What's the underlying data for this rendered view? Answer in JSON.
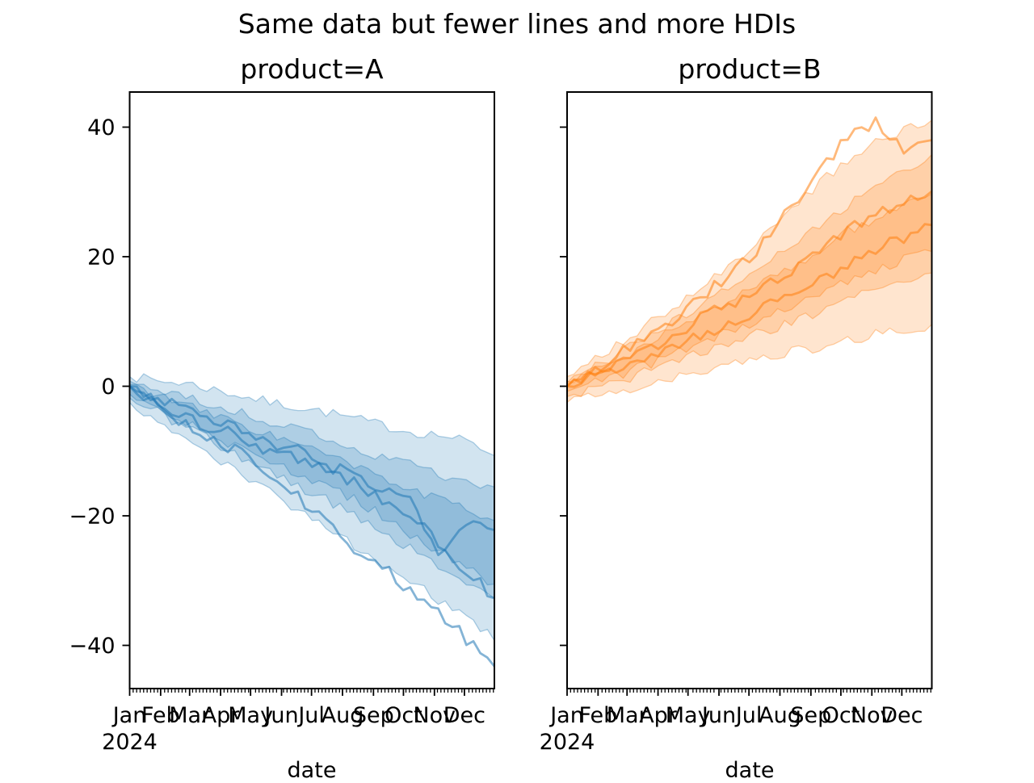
{
  "figure": {
    "suptitle": "Same data but fewer lines and more HDIs",
    "background": "#ffffff",
    "text_color": "#000000"
  },
  "chart_data": [
    {
      "type": "line",
      "title": "product=A",
      "xlabel": "date",
      "year_label": "2024",
      "x_tick_labels": [
        "Jan",
        "Feb",
        "Mar",
        "Apr",
        "May",
        "Jun",
        "Jul",
        "Aug",
        "Sep",
        "Oct",
        "Nov",
        "Dec"
      ],
      "month_start_days": [
        0,
        31,
        60,
        91,
        121,
        152,
        182,
        213,
        244,
        274,
        305,
        335
      ],
      "x_range_days": 365,
      "yticks": [
        {
          "v": 40,
          "label": "40"
        },
        {
          "v": 20,
          "label": "20"
        },
        {
          "v": 0,
          "label": "0"
        },
        {
          "v": -20,
          "label": "−20"
        },
        {
          "v": -40,
          "label": "−40"
        }
      ],
      "show_ytick_labels": true,
      "ylim": [
        -46.9,
        45.4
      ],
      "grid": false,
      "legend": "none",
      "color": "#1f77b4",
      "anchor_weeks": [
        0,
        4,
        8,
        12,
        16,
        20,
        24,
        28,
        32,
        36,
        40,
        44,
        48,
        52
      ],
      "hdi_bands": [
        {
          "name": "hdi-wide",
          "top": [
            1.5,
            0.8,
            0.5,
            -0.5,
            -1.5,
            -2.5,
            -3.2,
            -4.0,
            -5.0,
            -6.0,
            -7.0,
            -7.5,
            -8.5,
            -10.5
          ],
          "bottom": [
            -2.5,
            -5.5,
            -8.0,
            -11.0,
            -13.5,
            -16.5,
            -19.0,
            -21.5,
            -24.5,
            -27.5,
            -30.0,
            -33.0,
            -36.0,
            -39.0
          ]
        },
        {
          "name": "hdi-mid",
          "top": [
            0.8,
            -0.5,
            -1.8,
            -3.0,
            -4.2,
            -5.5,
            -6.8,
            -8.0,
            -9.5,
            -11.0,
            -12.0,
            -13.5,
            -14.5,
            -15.5
          ],
          "bottom": [
            -1.8,
            -4.0,
            -6.5,
            -8.5,
            -11.0,
            -13.0,
            -15.5,
            -17.5,
            -20.0,
            -22.5,
            -25.0,
            -28.0,
            -30.5,
            -33.0
          ]
        },
        {
          "name": "hdi-narrow",
          "top": [
            0.3,
            -1.3,
            -3.0,
            -4.5,
            -6.0,
            -7.5,
            -9.0,
            -10.5,
            -12.5,
            -14.0,
            -16.0,
            -17.5,
            -19.0,
            -20.5
          ],
          "bottom": [
            -1.2,
            -3.5,
            -5.5,
            -8.0,
            -9.5,
            -11.5,
            -13.5,
            -15.5,
            -17.5,
            -20.0,
            -23.0,
            -25.5,
            -28.0,
            -30.5
          ]
        }
      ],
      "lines": [
        [
          0,
          -2.0,
          -3.5,
          -5.0,
          -7.0,
          -8.5,
          -10.0,
          -12.0,
          -14.0,
          -16.0,
          -18.0,
          -26.0,
          -21.5,
          -22.0
        ],
        [
          0,
          -2.5,
          -5.0,
          -6.5,
          -8.0,
          -10.0,
          -11.5,
          -13.0,
          -15.0,
          -17.5,
          -20.0,
          -24.0,
          -28.5,
          -32.5
        ],
        [
          0,
          -3.0,
          -6.0,
          -8.5,
          -10.0,
          -13.5,
          -17.0,
          -21.0,
          -25.0,
          -28.0,
          -31.5,
          -35.0,
          -39.0,
          -43.0
        ]
      ]
    },
    {
      "type": "line",
      "title": "product=B",
      "xlabel": "date",
      "year_label": "2024",
      "x_tick_labels": [
        "Jan",
        "Feb",
        "Mar",
        "Apr",
        "May",
        "Jun",
        "Jul",
        "Aug",
        "Sep",
        "Oct",
        "Nov",
        "Dec"
      ],
      "month_start_days": [
        0,
        31,
        60,
        91,
        121,
        152,
        182,
        213,
        244,
        274,
        305,
        335
      ],
      "x_range_days": 365,
      "yticks": [
        {
          "v": 40,
          "label": "40"
        },
        {
          "v": 20,
          "label": "20"
        },
        {
          "v": 0,
          "label": "0"
        },
        {
          "v": -20,
          "label": "−20"
        },
        {
          "v": -40,
          "label": "−40"
        }
      ],
      "show_ytick_labels": false,
      "ylim": [
        -46.9,
        45.4
      ],
      "grid": false,
      "legend": "none",
      "color": "#ff7f0e",
      "anchor_weeks": [
        0,
        4,
        8,
        12,
        16,
        20,
        24,
        28,
        32,
        36,
        40,
        44,
        48,
        52
      ],
      "hdi_bands": [
        {
          "name": "hdi-wide",
          "top": [
            1.5,
            4.0,
            7.0,
            10.0,
            13.0,
            16.0,
            19.5,
            23.0,
            27.0,
            31.5,
            35.0,
            37.5,
            39.5,
            41.0
          ],
          "bottom": [
            -2.5,
            -1.5,
            -0.5,
            0.5,
            1.5,
            2.5,
            3.5,
            4.5,
            5.5,
            6.0,
            7.0,
            8.0,
            8.5,
            9.5
          ]
        },
        {
          "name": "hdi-mid",
          "top": [
            0.8,
            3.0,
            5.5,
            8.0,
            10.5,
            13.0,
            16.0,
            18.5,
            21.5,
            25.0,
            28.0,
            31.0,
            33.5,
            35.5
          ],
          "bottom": [
            -1.6,
            -0.5,
            1.0,
            2.5,
            4.0,
            5.5,
            7.0,
            8.5,
            10.0,
            11.5,
            13.5,
            15.0,
            16.5,
            17.5
          ]
        },
        {
          "name": "hdi-narrow",
          "top": [
            0.5,
            2.5,
            4.5,
            7.0,
            9.0,
            11.5,
            13.5,
            16.0,
            18.5,
            21.0,
            24.0,
            26.0,
            28.0,
            29.5
          ],
          "bottom": [
            -0.8,
            0.5,
            2.0,
            3.5,
            5.5,
            7.0,
            9.0,
            10.5,
            12.5,
            14.5,
            16.0,
            18.0,
            19.5,
            21.0
          ]
        }
      ],
      "lines": [
        [
          0,
          2.5,
          5.5,
          8.5,
          11.0,
          14.5,
          18.0,
          22.0,
          28.0,
          33.0,
          38.5,
          40.5,
          36.5,
          38.0
        ],
        [
          0,
          2.0,
          4.0,
          6.0,
          8.5,
          11.0,
          13.0,
          15.5,
          18.0,
          21.0,
          24.0,
          26.5,
          28.5,
          30.0
        ],
        [
          0,
          1.5,
          3.0,
          5.0,
          6.5,
          8.0,
          10.0,
          12.0,
          14.0,
          16.0,
          18.5,
          21.0,
          23.0,
          25.0
        ]
      ]
    }
  ],
  "style": {
    "band_fill_alpha": 0.2,
    "band_edge_alpha": 0.35,
    "band_edge_width": 1.3,
    "line_alpha": 0.55,
    "line_width": 2.8,
    "spine_color": "#000000",
    "jitter_band": 0.8,
    "jitter_line": 1.0
  }
}
